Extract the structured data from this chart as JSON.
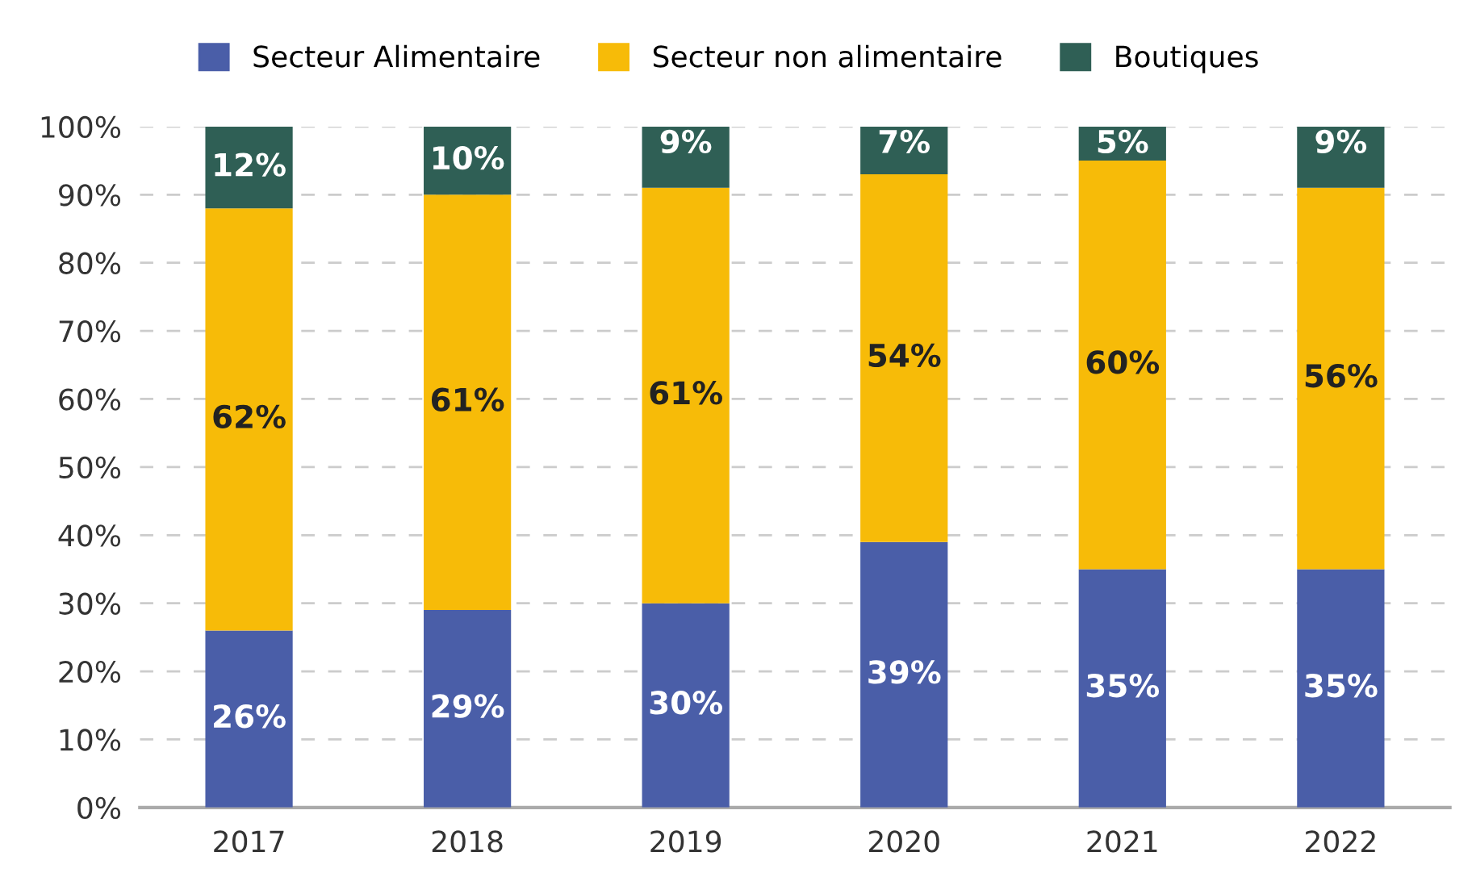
{
  "chart_data": {
    "type": "bar",
    "stacked": true,
    "categories": [
      "2017",
      "2018",
      "2019",
      "2020",
      "2021",
      "2022"
    ],
    "series": [
      {
        "name": "Secteur Alimentaire",
        "color": "#4a5ea8",
        "values": [
          26,
          29,
          30,
          39,
          35,
          35
        ],
        "value_labels": [
          "26%",
          "29%",
          "30%",
          "39%",
          "35%",
          "35%"
        ]
      },
      {
        "name": "Secteur non alimentaire",
        "color": "#f7bb08",
        "values": [
          62,
          61,
          61,
          54,
          60,
          56
        ],
        "value_labels": [
          "62%",
          "61%",
          "61%",
          "54%",
          "60%",
          "56%"
        ]
      },
      {
        "name": "Boutiques",
        "color": "#2f5f55",
        "values": [
          12,
          10,
          9,
          7,
          5,
          9
        ],
        "value_labels": [
          "12%",
          "10%",
          "9%",
          "7%",
          "5%",
          "9%"
        ]
      }
    ],
    "ylim": [
      0,
      100
    ],
    "yticks": [
      {
        "value": 0,
        "label": "0%"
      },
      {
        "value": 10,
        "label": "10%"
      },
      {
        "value": 20,
        "label": "20%"
      },
      {
        "value": 30,
        "label": "30%"
      },
      {
        "value": 40,
        "label": "40%"
      },
      {
        "value": 50,
        "label": "50%"
      },
      {
        "value": 60,
        "label": "60%"
      },
      {
        "value": 70,
        "label": "70%"
      },
      {
        "value": 80,
        "label": "80%"
      },
      {
        "value": 90,
        "label": "90%"
      },
      {
        "value": 100,
        "label": "100%"
      }
    ],
    "grid": "y",
    "legend": "top"
  }
}
